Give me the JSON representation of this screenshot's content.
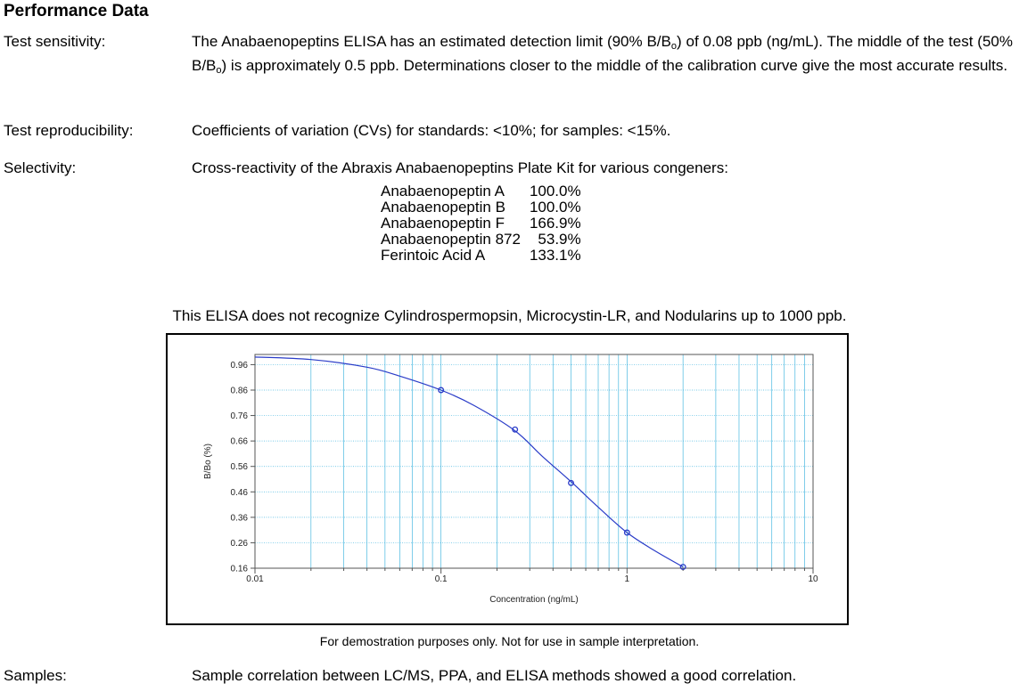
{
  "heading": "Performance Data",
  "sensitivity": {
    "label": "Test sensitivity:",
    "text_1": "The Anabaenopeptins ELISA has an estimated detection limit (90% B/B",
    "sub_1": "o",
    "text_2": ") of 0.08 ppb (ng/mL).  The middle of the test (50% B/B",
    "sub_2": "o",
    "text_3": ") is approximately 0.5 ppb.  Determinations closer to the middle of the calibration curve give the most accurate results."
  },
  "reproducibility": {
    "label": "Test reproducibility:",
    "text": "Coefficients of variation (CVs) for standards: <10%; for samples: <15%."
  },
  "selectivity": {
    "label": "Selectivity:",
    "text": "Cross-reactivity of the Abraxis Anabaenopeptins Plate Kit for various congeners:",
    "congeners": [
      {
        "name": "Anabaenopeptin A",
        "value": "100.0%"
      },
      {
        "name": "Anabaenopeptin B",
        "value": "100.0%"
      },
      {
        "name": "Anabaenopeptin F",
        "value": "166.9%"
      },
      {
        "name": "Anabaenopeptin 872",
        "value": "53.9%"
      },
      {
        "name": "Ferintoic Acid A",
        "value": "133.1%"
      }
    ],
    "note": "This ELISA does not recognize Cylindrospermopsin, Microcystin-LR, and Nodularins up to 1000 ppb."
  },
  "chart_data": {
    "type": "scatter",
    "xlabel": "Concentration (ng/mL)",
    "ylabel": "B/Bo (%)",
    "xscale": "log",
    "xlim": [
      0.01,
      10
    ],
    "ylim": [
      0.16,
      1.0
    ],
    "x_ticks": [
      0.01,
      0.1,
      1,
      10
    ],
    "x_tick_labels": [
      "0.01",
      "0.1",
      "1",
      "10"
    ],
    "y_ticks": [
      0.16,
      0.26,
      0.36,
      0.46,
      0.56,
      0.66,
      0.76,
      0.86,
      0.96
    ],
    "y_tick_labels": [
      "0.16",
      "0.26",
      "0.36",
      "0.46",
      "0.56",
      "0.66",
      "0.76",
      "0.86",
      "0.96"
    ],
    "grid": true,
    "points": {
      "x": [
        0.1,
        0.25,
        0.5,
        1,
        2
      ],
      "y": [
        0.86,
        0.705,
        0.495,
        0.3,
        0.165
      ]
    },
    "fit_curve": {
      "x": [
        0.01,
        0.02,
        0.04,
        0.06,
        0.1,
        0.15,
        0.25,
        0.35,
        0.5,
        0.7,
        1,
        1.4,
        2
      ],
      "y": [
        0.99,
        0.98,
        0.95,
        0.915,
        0.86,
        0.8,
        0.7,
        0.6,
        0.5,
        0.4,
        0.3,
        0.23,
        0.165
      ]
    },
    "colors": {
      "series": "#2a3cc8",
      "grid": "#49b8e0",
      "axis": "#555555"
    }
  },
  "disclaimer": "For demostration purposes only.  Not for use in sample interpretation.",
  "samples": {
    "label": "Samples:",
    "text": "Sample correlation between LC/MS, PPA, and ELISA methods showed a good correlation."
  }
}
